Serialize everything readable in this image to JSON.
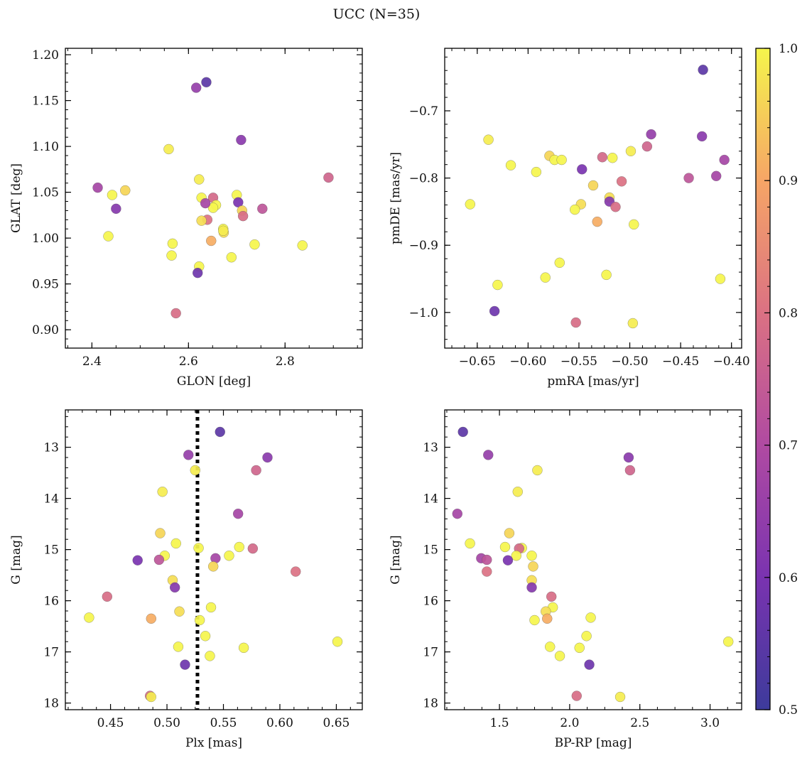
{
  "figure": {
    "title": "UCC (N=35)"
  },
  "colorbar": {
    "min": 0.5,
    "max": 1.0,
    "ticks": [
      0.5,
      0.6,
      0.7,
      0.8,
      0.9,
      1.0
    ],
    "tick_labels": [
      "0.5",
      "0.6",
      "0.7",
      "0.8",
      "0.9",
      "1.0"
    ],
    "colormap": "plasma"
  },
  "chart_data": [
    {
      "type": "scatter",
      "panel": "top-left",
      "xlabel": "GLON [deg]",
      "ylabel": "GLAT [deg]",
      "xlim": [
        2.345,
        2.96
      ],
      "ylim": [
        0.88,
        1.207
      ],
      "y_inverted": false,
      "xticks": [
        2.4,
        2.6,
        2.8
      ],
      "xtick_labels": [
        "2.4",
        "2.6",
        "2.8"
      ],
      "yticks": [
        0.9,
        0.95,
        1.0,
        1.05,
        1.1,
        1.15,
        1.2
      ],
      "ytick_labels": [
        "0.90",
        "0.95",
        "1.00",
        "1.05",
        "1.10",
        "1.15",
        "1.20"
      ],
      "x": [
        2.637,
        2.616,
        2.709,
        2.559,
        2.89,
        2.622,
        2.412,
        2.469,
        2.442,
        2.7,
        2.651,
        2.627,
        2.657,
        2.651,
        2.703,
        2.635,
        2.753,
        2.711,
        2.639,
        2.627,
        2.45,
        2.713,
        2.672,
        2.673,
        2.434,
        2.647,
        2.567,
        2.737,
        2.836,
        2.565,
        2.689,
        2.622,
        2.619,
        2.574,
        2.672
      ],
      "y": [
        1.17,
        1.164,
        1.107,
        1.097,
        1.066,
        1.064,
        1.055,
        1.052,
        1.047,
        1.047,
        1.044,
        1.044,
        1.036,
        1.033,
        1.039,
        1.038,
        1.032,
        1.03,
        1.02,
        1.019,
        1.032,
        1.024,
        1.01,
        1.006,
        1.002,
        0.997,
        0.994,
        0.993,
        0.992,
        0.981,
        0.979,
        0.969,
        0.962,
        0.918,
        1.008
      ],
      "c": [
        0.55,
        0.65,
        0.63,
        0.99,
        0.77,
        0.99,
        0.68,
        0.96,
        1.0,
        1.0,
        0.78,
        1.0,
        1.0,
        1.0,
        0.6,
        0.68,
        0.73,
        0.96,
        0.8,
        0.97,
        0.62,
        0.79,
        1.0,
        0.97,
        1.0,
        0.91,
        1.0,
        1.0,
        1.0,
        1.0,
        1.0,
        1.0,
        0.58,
        0.79,
        0.99
      ]
    },
    {
      "type": "scatter",
      "panel": "top-right",
      "xlabel": "pmRA [mas/yr]",
      "ylabel": "pmDE [mas/yr]",
      "xlim": [
        -0.682,
        -0.39
      ],
      "ylim": [
        -1.053,
        -0.607
      ],
      "y_inverted": false,
      "xticks": [
        -0.65,
        -0.6,
        -0.55,
        -0.5,
        -0.45,
        -0.4
      ],
      "xtick_labels": [
        "−0.65",
        "−0.60",
        "−0.55",
        "−0.50",
        "−0.45",
        "−0.40"
      ],
      "yticks": [
        -1.0,
        -0.9,
        -0.8,
        -0.7
      ],
      "ytick_labels": [
        "−1.0",
        "−0.9",
        "−0.8",
        "−0.7"
      ],
      "x": [
        -0.428,
        -0.479,
        -0.429,
        -0.639,
        -0.483,
        -0.499,
        -0.407,
        -0.579,
        -0.574,
        -0.567,
        -0.527,
        -0.517,
        -0.617,
        -0.592,
        -0.547,
        -0.415,
        -0.442,
        -0.536,
        -0.508,
        -0.52,
        -0.52,
        -0.514,
        -0.657,
        -0.548,
        -0.554,
        -0.532,
        -0.496,
        -0.569,
        -0.523,
        -0.583,
        -0.411,
        -0.63,
        -0.633,
        -0.553,
        -0.497
      ],
      "y": [
        -0.639,
        -0.735,
        -0.738,
        -0.743,
        -0.753,
        -0.76,
        -0.773,
        -0.767,
        -0.773,
        -0.773,
        -0.769,
        -0.77,
        -0.781,
        -0.791,
        -0.787,
        -0.797,
        -0.8,
        -0.811,
        -0.805,
        -0.829,
        -0.835,
        -0.843,
        -0.839,
        -0.839,
        -0.847,
        -0.865,
        -0.869,
        -0.926,
        -0.944,
        -0.948,
        -0.95,
        -0.959,
        -0.998,
        -1.015,
        -1.016
      ]
    },
    {
      "type": "scatter",
      "panel": "bottom-left",
      "xlabel": "Plx [mas]",
      "ylabel": "G [mag]",
      "xlim": [
        0.41,
        0.673
      ],
      "ylim": [
        18.13,
        12.27
      ],
      "y_inverted": true,
      "vline": {
        "x": 0.527,
        "style": "dotted"
      },
      "xticks": [
        0.45,
        0.5,
        0.55,
        0.6,
        0.65
      ],
      "xtick_labels": [
        "0.45",
        "0.50",
        "0.55",
        "0.60",
        "0.65"
      ],
      "yticks": [
        13,
        14,
        15,
        16,
        17,
        18
      ],
      "ytick_labels": [
        "13",
        "14",
        "15",
        "16",
        "17",
        "18"
      ],
      "x": [
        0.547,
        0.519,
        0.589,
        0.525,
        0.579,
        0.496,
        0.563,
        0.494,
        0.508,
        0.528,
        0.576,
        0.564,
        0.498,
        0.555,
        0.474,
        0.543,
        0.493,
        0.541,
        0.614,
        0.505,
        0.507,
        0.447,
        0.539,
        0.511,
        0.431,
        0.486,
        0.529,
        0.651,
        0.568,
        0.51,
        0.534,
        0.538,
        0.516,
        0.485,
        0.486
      ],
      "y": [
        12.7,
        13.15,
        13.2,
        13.45,
        13.45,
        13.87,
        14.3,
        14.68,
        14.88,
        14.97,
        14.98,
        14.95,
        15.12,
        15.12,
        15.21,
        15.17,
        15.2,
        15.33,
        15.43,
        15.6,
        15.74,
        15.92,
        16.13,
        16.21,
        16.33,
        16.35,
        16.38,
        16.8,
        16.92,
        16.9,
        16.69,
        17.08,
        17.25,
        17.86,
        17.88
      ]
    },
    {
      "type": "scatter",
      "panel": "bottom-right",
      "xlabel": "BP-RP [mag]",
      "ylabel": "G [mag]",
      "xlim": [
        1.11,
        3.225
      ],
      "ylim": [
        18.13,
        12.27
      ],
      "y_inverted": true,
      "xticks": [
        1.5,
        2.0,
        2.5,
        3.0
      ],
      "xtick_labels": [
        "1.5",
        "2.0",
        "2.5",
        "3.0"
      ],
      "yticks": [
        13,
        14,
        15,
        16,
        17,
        18
      ],
      "ytick_labels": [
        "13",
        "14",
        "15",
        "16",
        "17",
        "18"
      ],
      "x": [
        1.24,
        1.42,
        2.42,
        1.77,
        2.43,
        1.63,
        1.2,
        1.57,
        1.29,
        1.66,
        1.64,
        1.54,
        1.62,
        1.73,
        1.56,
        1.37,
        1.41,
        1.74,
        1.41,
        1.73,
        1.73,
        1.87,
        1.88,
        1.83,
        2.15,
        1.84,
        1.75,
        3.13,
        2.07,
        1.86,
        2.12,
        1.93,
        2.14,
        2.05,
        2.36
      ]
    }
  ]
}
